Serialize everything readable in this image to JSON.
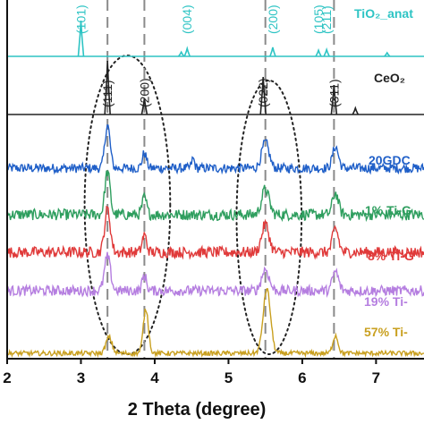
{
  "chart_data": {
    "type": "line",
    "xlabel": "2 Theta (degree)",
    "x_ticks": [
      2,
      3,
      4,
      5,
      6,
      7
    ],
    "xlim": [
      2,
      7.8
    ],
    "y_axis": "stacked offset traces, no numeric y scale shown",
    "grid": false,
    "dashed_guides_x": [
      3.36,
      3.86,
      5.5,
      6.43
    ],
    "dotted_ellipses": [
      {
        "center_x": 3.63,
        "half_width": 0.58
      },
      {
        "center_x": 5.55,
        "half_width": 0.44
      }
    ],
    "reference_patterns": [
      {
        "name": "TiO₂_anat",
        "color": "#2ec4c4",
        "peaks": [
          {
            "x": 3.0,
            "height": 1.0,
            "label": "(101)"
          },
          {
            "x": 4.36,
            "height": 0.12
          },
          {
            "x": 4.44,
            "height": 0.22,
            "label": "(004)"
          },
          {
            "x": 5.6,
            "height": 0.25,
            "label": "(200)"
          },
          {
            "x": 6.22,
            "height": 0.17,
            "label": "(105)"
          },
          {
            "x": 6.33,
            "height": 0.19,
            "label": "(211)"
          },
          {
            "x": 7.15,
            "height": 0.1
          }
        ]
      },
      {
        "name": "CeO₂",
        "color": "#222222",
        "peaks": [
          {
            "x": 3.36,
            "height": 1.0,
            "label": "(111)"
          },
          {
            "x": 3.86,
            "height": 0.3,
            "label": "(200)"
          },
          {
            "x": 5.47,
            "height": 0.7,
            "label": "(022)"
          },
          {
            "x": 6.43,
            "height": 0.55,
            "label": "(311)"
          },
          {
            "x": 6.72,
            "height": 0.12
          }
        ]
      }
    ],
    "series": [
      {
        "name": "20GDC",
        "color": "#1f5fc8",
        "noise": 0.11,
        "peaks": [
          {
            "x": 3.36,
            "height": 1.0,
            "width": 0.035
          },
          {
            "x": 3.86,
            "height": 0.35,
            "width": 0.03
          },
          {
            "x": 4.52,
            "height": 0.22,
            "width": 0.02
          },
          {
            "x": 5.5,
            "height": 0.6,
            "width": 0.05
          },
          {
            "x": 6.45,
            "height": 0.5,
            "width": 0.04
          }
        ]
      },
      {
        "name": "1% Ti-G",
        "color": "#2e9e5e",
        "noise": 0.13,
        "peaks": [
          {
            "x": 3.36,
            "height": 1.0,
            "width": 0.035
          },
          {
            "x": 3.86,
            "height": 0.4,
            "width": 0.03
          },
          {
            "x": 5.5,
            "height": 0.6,
            "width": 0.05
          },
          {
            "x": 6.45,
            "height": 0.5,
            "width": 0.04
          }
        ]
      },
      {
        "name": "8% Ti-G",
        "color": "#e03a3a",
        "noise": 0.13,
        "peaks": [
          {
            "x": 3.36,
            "height": 1.0,
            "width": 0.038
          },
          {
            "x": 3.86,
            "height": 0.4,
            "width": 0.03
          },
          {
            "x": 5.5,
            "height": 0.65,
            "width": 0.05
          },
          {
            "x": 6.45,
            "height": 0.55,
            "width": 0.04
          }
        ]
      },
      {
        "name": "19% Ti-",
        "color": "#b57ee0",
        "noise": 0.12,
        "peaks": [
          {
            "x": 3.36,
            "height": 0.8,
            "width": 0.04
          },
          {
            "x": 3.86,
            "height": 0.35,
            "width": 0.03
          },
          {
            "x": 5.5,
            "height": 0.5,
            "width": 0.05
          },
          {
            "x": 6.45,
            "height": 0.45,
            "width": 0.04
          }
        ]
      },
      {
        "name": "57% Ti-",
        "color": "#c9a020",
        "noise": 0.06,
        "peaks": [
          {
            "x": 3.38,
            "height": 0.4,
            "width": 0.04
          },
          {
            "x": 3.88,
            "height": 1.1,
            "width": 0.035
          },
          {
            "x": 5.52,
            "height": 1.6,
            "width": 0.05
          },
          {
            "x": 6.45,
            "height": 0.45,
            "width": 0.035
          }
        ]
      }
    ]
  }
}
